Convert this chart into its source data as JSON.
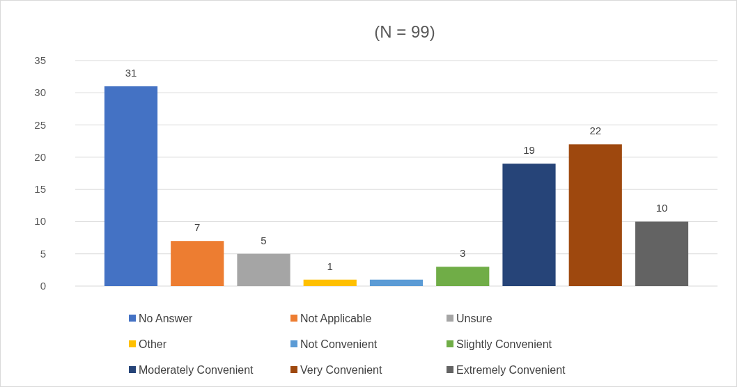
{
  "chart_data": {
    "type": "bar",
    "title": "(N = 99)",
    "categories": [
      null
    ],
    "ylim": [
      0,
      35
    ],
    "yticks": [
      0,
      5,
      10,
      15,
      20,
      25,
      30,
      35
    ],
    "grid": "y",
    "legend": "bottom",
    "series": [
      {
        "name": "No Answer",
        "color": "#4472c4",
        "values": [
          31
        ],
        "value_labels": [
          "31"
        ]
      },
      {
        "name": "Not Applicable",
        "color": "#ed7d31",
        "values": [
          7
        ],
        "value_labels": [
          "7"
        ]
      },
      {
        "name": "Unsure",
        "color": "#a5a5a5",
        "values": [
          5
        ],
        "value_labels": [
          "5"
        ]
      },
      {
        "name": "Other",
        "color": "#ffc000",
        "values": [
          1
        ],
        "value_labels": [
          "1"
        ]
      },
      {
        "name": "Not Convenient",
        "color": "#5b9bd5",
        "values": [
          1
        ],
        "value_labels": [
          null
        ]
      },
      {
        "name": "Slightly Convenient",
        "color": "#70ad47",
        "values": [
          3
        ],
        "value_labels": [
          "3"
        ]
      },
      {
        "name": "Moderately Convenient",
        "color": "#264478",
        "values": [
          19
        ],
        "value_labels": [
          "19"
        ]
      },
      {
        "name": "Very Convenient",
        "color": "#9e480e",
        "values": [
          22
        ],
        "value_labels": [
          "22"
        ]
      },
      {
        "name": "Extremely Convenient",
        "color": "#636363",
        "values": [
          10
        ],
        "value_labels": [
          "10"
        ]
      }
    ]
  }
}
